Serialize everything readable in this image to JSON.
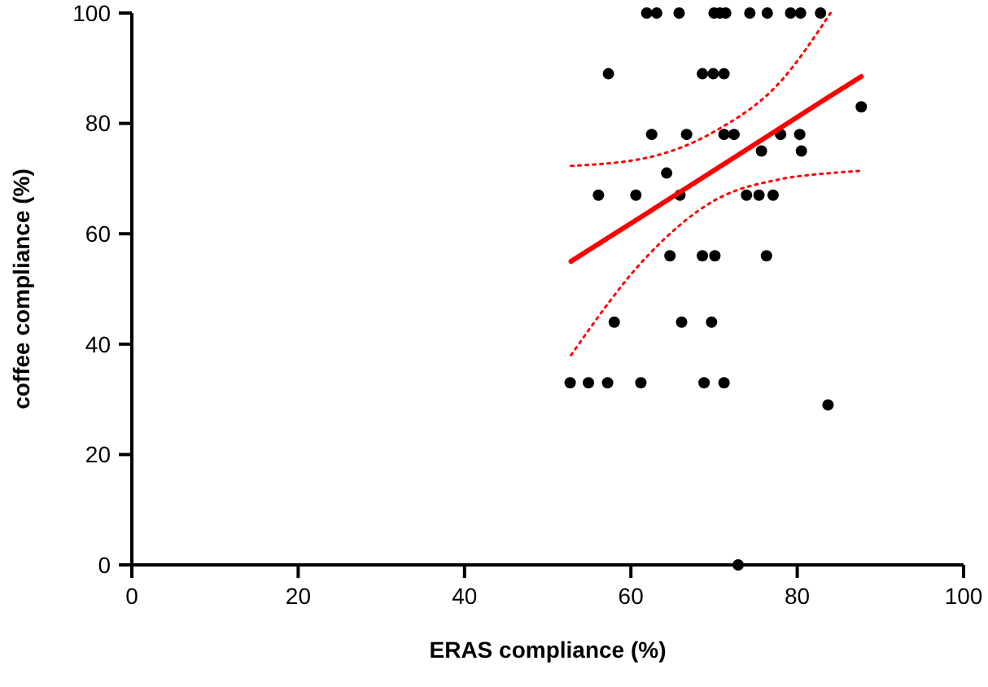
{
  "chart_data": {
    "type": "scatter",
    "xlabel": "ERAS compliance (%)",
    "ylabel": "coffee compliance (%)",
    "xlim": [
      0,
      100
    ],
    "ylim": [
      0,
      100
    ],
    "xticks": [
      0,
      20,
      40,
      60,
      80,
      100
    ],
    "yticks": [
      0,
      20,
      40,
      60,
      80,
      100
    ],
    "grid": false,
    "series": [
      {
        "color": "#000000",
        "marker": "circle",
        "x": [
          61.9,
          63.1,
          65.8,
          70.0,
          70.7,
          71.4,
          74.3,
          76.4,
          79.2,
          80.4,
          82.8,
          57.3,
          68.6,
          69.9,
          71.2,
          87.7,
          62.5,
          66.7,
          71.2,
          72.4,
          78.0,
          80.3,
          75.7,
          80.5,
          64.3,
          56.1,
          60.6,
          65.9,
          73.9,
          75.4,
          77.1,
          64.7,
          68.6,
          70.1,
          76.3,
          58.0,
          66.1,
          69.7,
          52.7,
          54.9,
          57.2,
          61.2,
          68.8,
          71.2,
          83.7,
          72.9
        ],
        "values": [
          100,
          100,
          100,
          100,
          100,
          100,
          100,
          100,
          100,
          100,
          100,
          89,
          89,
          89,
          89,
          83,
          78,
          78,
          78,
          78,
          78,
          78,
          75,
          75,
          71,
          67,
          67,
          67,
          67,
          67,
          67,
          56,
          56,
          56,
          56,
          44,
          44,
          44,
          33,
          33,
          33,
          33,
          33,
          33,
          29,
          0
        ]
      },
      {
        "type": "line",
        "color": "#ff0000",
        "line_style": "solid",
        "marker": "none",
        "x": [
          52.8,
          62,
          70,
          78,
          84,
          87.7
        ],
        "values": [
          55,
          63.8,
          71.5,
          79.2,
          85,
          88.5
        ]
      },
      {
        "type": "line",
        "color": "#ff0000",
        "line_style": "dotted",
        "marker": "none",
        "x": [
          52.8,
          62,
          70,
          78,
          84
        ],
        "values": [
          72.3,
          73.8,
          78.5,
          87.6,
          100
        ]
      },
      {
        "type": "line",
        "color": "#ff0000",
        "line_style": "dotted",
        "marker": "none",
        "x": [
          52.8,
          62,
          70,
          78,
          84,
          87.7
        ],
        "values": [
          38,
          56,
          66,
          69.9,
          71,
          71.4
        ]
      }
    ]
  }
}
